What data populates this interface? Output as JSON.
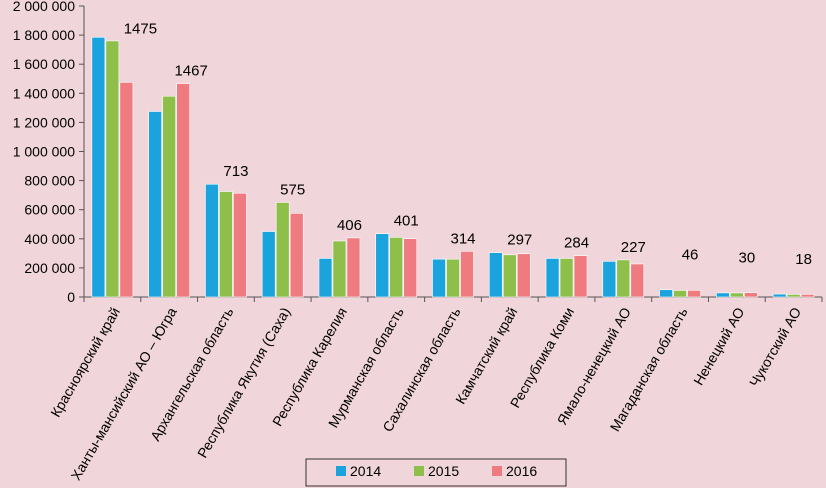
{
  "chart_data": {
    "type": "bar",
    "title": "",
    "xlabel": "",
    "ylabel": "",
    "ylim": [
      0,
      2000000
    ],
    "yticks": [
      0,
      200000,
      400000,
      600000,
      800000,
      1000000,
      1200000,
      1400000,
      1600000,
      1800000,
      2000000
    ],
    "ytick_labels": [
      "0",
      "200 000",
      "400 000",
      "600 000",
      "800 000",
      "1 000 000",
      "1 200 000",
      "1 400 000",
      "1 600 000",
      "1 800 000",
      "2 000 000"
    ],
    "categories": [
      "Красноярский край",
      "Ханты-мансийский АО – Югра",
      "Архангельская область",
      "Республика Якутия (Саха)",
      "Республика Карелия",
      "Мурманская область",
      "Сахалинская область",
      "Камчатский край",
      "Республика Коми",
      "Ямало-ненецкий АО",
      "Магаданская область",
      "Ненецкий АО",
      "Чукотский АО"
    ],
    "series": [
      {
        "name": "2014",
        "color": "#1aa3dd",
        "values": [
          1785000,
          1275000,
          775000,
          450000,
          265000,
          435000,
          260000,
          305000,
          265000,
          245000,
          50000,
          28000,
          20000
        ]
      },
      {
        "name": "2015",
        "color": "#8dbf4a",
        "values": [
          1760000,
          1380000,
          725000,
          650000,
          385000,
          410000,
          260000,
          290000,
          265000,
          255000,
          45000,
          28000,
          18000
        ]
      },
      {
        "name": "2016",
        "color": "#ef7a80",
        "values": [
          1475000,
          1467000,
          713000,
          575000,
          406000,
          401000,
          314000,
          297000,
          284000,
          227000,
          46000,
          30000,
          18000
        ]
      }
    ],
    "data_labels": [
      "1475",
      "1467",
      "713",
      "575",
      "406",
      "401",
      "314",
      "297",
      "284",
      "227",
      "46",
      "30",
      "18"
    ],
    "legend": {
      "position": "bottom",
      "entries": [
        "2014",
        "2015",
        "2016"
      ]
    },
    "grid": false
  }
}
